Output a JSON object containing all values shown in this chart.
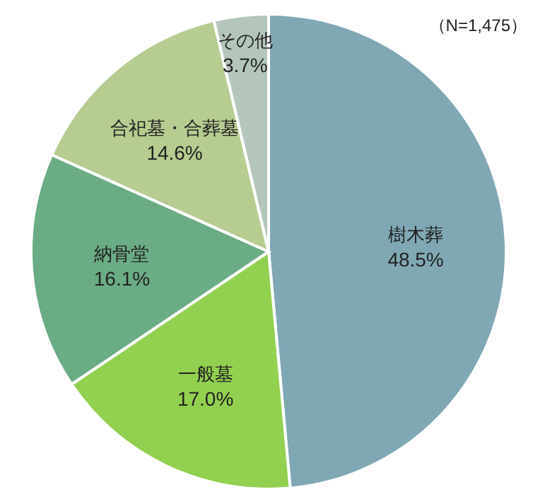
{
  "chart_data": {
    "type": "pie",
    "categories": [
      "樹木葬",
      "一般墓",
      "納骨堂",
      "合祀墓・合葬墓",
      "その他"
    ],
    "values": [
      48.5,
      17.0,
      16.1,
      14.6,
      3.7
    ],
    "colors": [
      "#7fa8b4",
      "#92d050",
      "#6aac84",
      "#b6cc90",
      "#b4c6bc"
    ],
    "value_labels": [
      "48.5%",
      "17.0%",
      "16.1%",
      "14.6%",
      "3.7%"
    ],
    "annotations": [
      "（N=1,475）"
    ]
  }
}
